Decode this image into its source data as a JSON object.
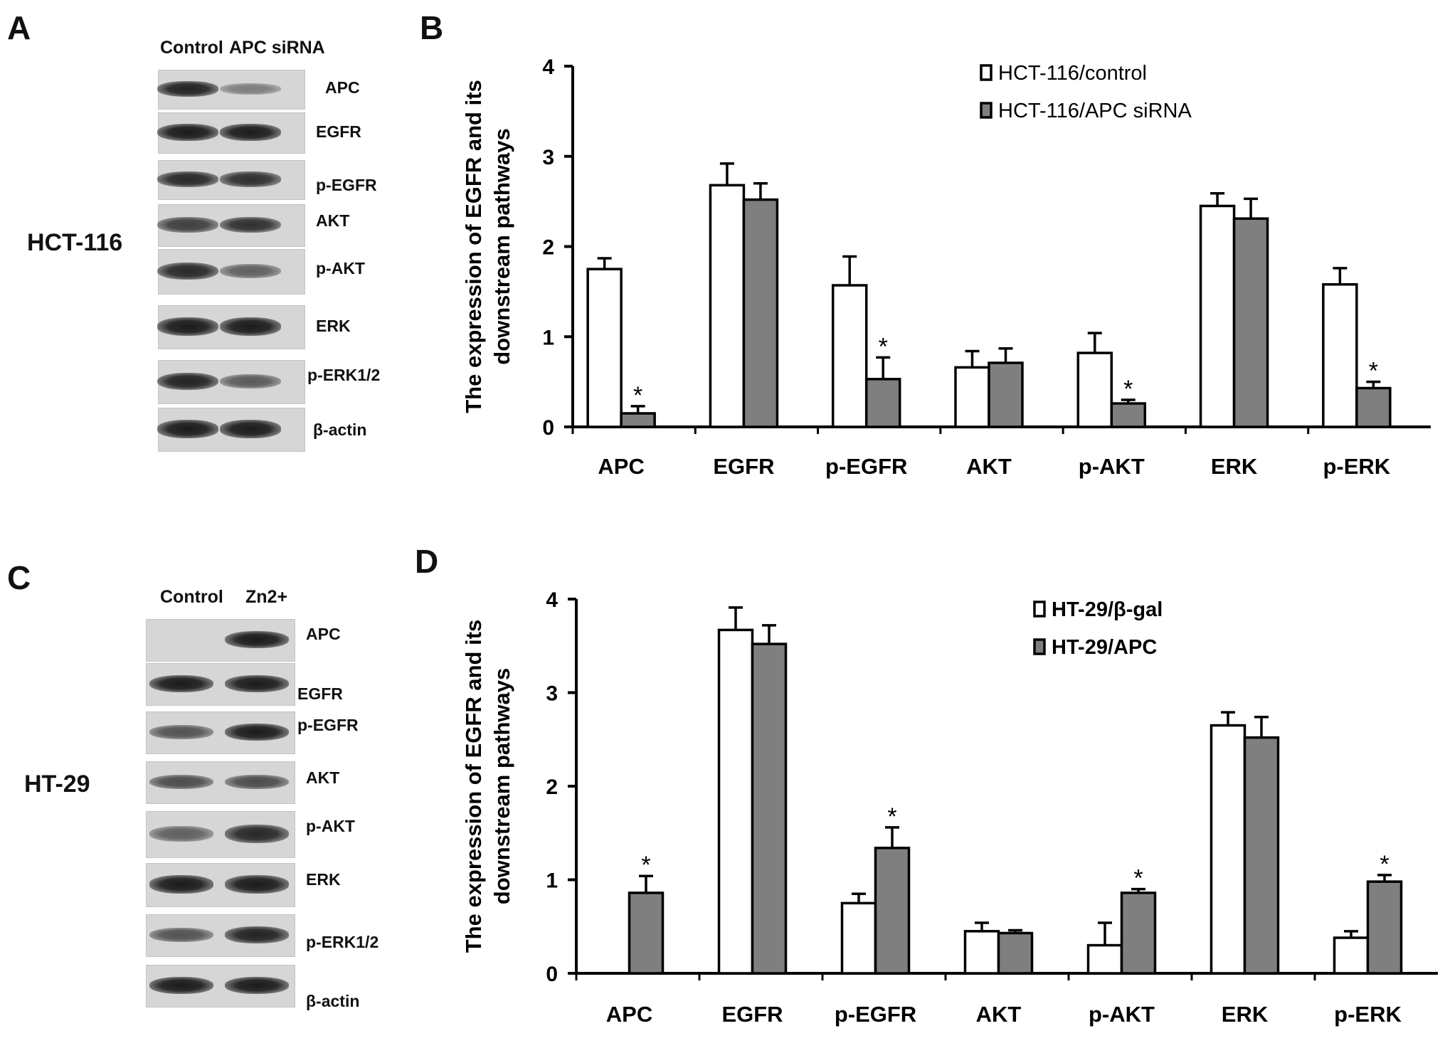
{
  "panels": {
    "a": {
      "letter": "A",
      "cell_line": "HCT-116",
      "lanes": [
        "Control",
        "APC siRNA"
      ],
      "blots": [
        {
          "label": "APC",
          "c": 0.95,
          "t": 0.3
        },
        {
          "label": "EGFR",
          "c": 1.0,
          "t": 1.0
        },
        {
          "label": "p-EGFR",
          "c": 0.9,
          "t": 0.85
        },
        {
          "label": "AKT",
          "c": 0.75,
          "t": 0.85
        },
        {
          "label": "p-AKT",
          "c": 0.9,
          "t": 0.5
        },
        {
          "label": "ERK",
          "c": 1.0,
          "t": 1.0
        },
        {
          "label": "p-ERK1/2",
          "c": 0.95,
          "t": 0.55
        },
        {
          "label": "β-actin",
          "c": 1.0,
          "t": 1.0
        }
      ]
    },
    "b": {
      "letter": "B"
    },
    "c": {
      "letter": "C",
      "cell_line": "HT-29",
      "lanes": [
        "Control",
        "Zn2+"
      ],
      "blots": [
        {
          "label": "APC",
          "c": 0.0,
          "t": 1.0
        },
        {
          "label": "EGFR",
          "c": 1.0,
          "t": 1.0
        },
        {
          "label": "p-EGFR",
          "c": 0.6,
          "t": 1.0
        },
        {
          "label": "AKT",
          "c": 0.65,
          "t": 0.65
        },
        {
          "label": "p-AKT",
          "c": 0.5,
          "t": 0.9
        },
        {
          "label": "ERK",
          "c": 1.0,
          "t": 1.0
        },
        {
          "label": "p-ERK1/2",
          "c": 0.6,
          "t": 0.95
        },
        {
          "label": "β-actin",
          "c": 1.0,
          "t": 1.0
        }
      ]
    },
    "d": {
      "letter": "D"
    }
  },
  "chart_data": [
    {
      "type": "bar",
      "ylabel": [
        "The expression of EGFR and its",
        "downstream pathways"
      ],
      "ylim": [
        0,
        4
      ],
      "yticks": [
        "0",
        "1",
        "2",
        "3",
        "4"
      ],
      "categories": [
        "APC",
        "EGFR",
        "p-EGFR",
        "AKT",
        "p-AKT",
        "ERK",
        "p-ERK"
      ],
      "series": [
        {
          "name": "HCT-116/control",
          "fill": "#ffffff",
          "values": [
            1.75,
            2.68,
            1.57,
            0.66,
            0.82,
            2.45,
            1.58
          ],
          "errors": [
            0.12,
            0.24,
            0.32,
            0.18,
            0.22,
            0.14,
            0.18
          ],
          "significance": [
            "",
            "",
            "",
            "",
            "",
            "",
            ""
          ]
        },
        {
          "name": "HCT-116/APC siRNA",
          "fill": "#7f7f7f",
          "values": [
            0.15,
            2.52,
            0.53,
            0.71,
            0.26,
            2.31,
            0.43
          ],
          "errors": [
            0.08,
            0.18,
            0.24,
            0.16,
            0.04,
            0.22,
            0.07
          ],
          "significance": [
            "*",
            "",
            "*",
            "",
            "*",
            "",
            "*"
          ]
        }
      ],
      "legend": "top-right"
    },
    {
      "type": "bar",
      "ylabel": [
        "The expression of EGFR and its",
        "downstream pathways"
      ],
      "ylim": [
        0,
        4
      ],
      "yticks": [
        "0",
        "1",
        "2",
        "3",
        "4"
      ],
      "categories": [
        "APC",
        "EGFR",
        "p-EGFR",
        "AKT",
        "p-AKT",
        "ERK",
        "p-ERK"
      ],
      "series": [
        {
          "name": "HT-29/β-gal",
          "fill": "#ffffff",
          "values": [
            0.0,
            3.67,
            0.75,
            0.45,
            0.3,
            2.65,
            0.38
          ],
          "errors": [
            0.0,
            0.24,
            0.1,
            0.09,
            0.24,
            0.14,
            0.07
          ],
          "significance": [
            "",
            "",
            "",
            "",
            "",
            "",
            ""
          ]
        },
        {
          "name": "HT-29/APC",
          "fill": "#7f7f7f",
          "values": [
            0.86,
            3.52,
            1.34,
            0.43,
            0.86,
            2.52,
            0.98
          ],
          "errors": [
            0.18,
            0.2,
            0.22,
            0.03,
            0.04,
            0.22,
            0.07
          ],
          "significance": [
            "*",
            "",
            "*",
            "",
            "*",
            "",
            "*"
          ]
        }
      ],
      "legend": "top-right"
    }
  ]
}
